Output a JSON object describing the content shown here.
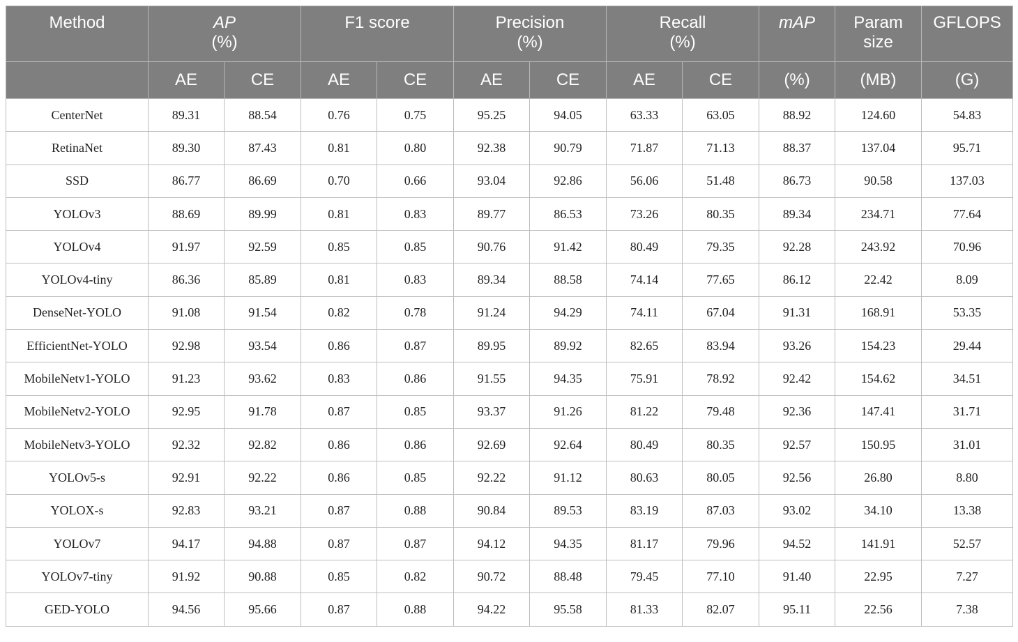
{
  "header": {
    "method": "Method",
    "ap": "AP",
    "ap_unit": "(%)",
    "f1": "F1 score",
    "precision": "Precision",
    "precision_unit": "(%)",
    "recall": "Recall",
    "recall_unit": "(%)",
    "map": "mAP",
    "map_unit": "(%)",
    "param": "Param",
    "param2": "size",
    "param_unit": "(MB)",
    "gflops": "GFLOPS",
    "gflops_unit": "(G)",
    "ae": "AE",
    "ce": "CE"
  },
  "rows": [
    [
      "CenterNet",
      "89.31",
      "88.54",
      "0.76",
      "0.75",
      "95.25",
      "94.05",
      "63.33",
      "63.05",
      "88.92",
      "124.60",
      "54.83"
    ],
    [
      "RetinaNet",
      "89.30",
      "87.43",
      "0.81",
      "0.80",
      "92.38",
      "90.79",
      "71.87",
      "71.13",
      "88.37",
      "137.04",
      "95.71"
    ],
    [
      "SSD",
      "86.77",
      "86.69",
      "0.70",
      "0.66",
      "93.04",
      "92.86",
      "56.06",
      "51.48",
      "86.73",
      "90.58",
      "137.03"
    ],
    [
      "YOLOv3",
      "88.69",
      "89.99",
      "0.81",
      "0.83",
      "89.77",
      "86.53",
      "73.26",
      "80.35",
      "89.34",
      "234.71",
      "77.64"
    ],
    [
      "YOLOv4",
      "91.97",
      "92.59",
      "0.85",
      "0.85",
      "90.76",
      "91.42",
      "80.49",
      "79.35",
      "92.28",
      "243.92",
      "70.96"
    ],
    [
      "YOLOv4-tiny",
      "86.36",
      "85.89",
      "0.81",
      "0.83",
      "89.34",
      "88.58",
      "74.14",
      "77.65",
      "86.12",
      "22.42",
      "8.09"
    ],
    [
      "DenseNet-YOLO",
      "91.08",
      "91.54",
      "0.82",
      "0.78",
      "91.24",
      "94.29",
      "74.11",
      "67.04",
      "91.31",
      "168.91",
      "53.35"
    ],
    [
      "EfficientNet-YOLO",
      "92.98",
      "93.54",
      "0.86",
      "0.87",
      "89.95",
      "89.92",
      "82.65",
      "83.94",
      "93.26",
      "154.23",
      "29.44"
    ],
    [
      "MobileNetv1-YOLO",
      "91.23",
      "93.62",
      "0.83",
      "0.86",
      "91.55",
      "94.35",
      "75.91",
      "78.92",
      "92.42",
      "154.62",
      "34.51"
    ],
    [
      "MobileNetv2-YOLO",
      "92.95",
      "91.78",
      "0.87",
      "0.85",
      "93.37",
      "91.26",
      "81.22",
      "79.48",
      "92.36",
      "147.41",
      "31.71"
    ],
    [
      "MobileNetv3-YOLO",
      "92.32",
      "92.82",
      "0.86",
      "0.86",
      "92.69",
      "92.64",
      "80.49",
      "80.35",
      "92.57",
      "150.95",
      "31.01"
    ],
    [
      "YOLOv5-s",
      "92.91",
      "92.22",
      "0.86",
      "0.85",
      "92.22",
      "91.12",
      "80.63",
      "80.05",
      "92.56",
      "26.80",
      "8.80"
    ],
    [
      "YOLOX-s",
      "92.83",
      "93.21",
      "0.87",
      "0.88",
      "90.84",
      "89.53",
      "83.19",
      "87.03",
      "93.02",
      "34.10",
      "13.38"
    ],
    [
      "YOLOv7",
      "94.17",
      "94.88",
      "0.87",
      "0.87",
      "94.12",
      "94.35",
      "81.17",
      "79.96",
      "94.52",
      "141.91",
      "52.57"
    ],
    [
      "YOLOv7-tiny",
      "91.92",
      "90.88",
      "0.85",
      "0.82",
      "90.72",
      "88.48",
      "79.45",
      "77.10",
      "91.40",
      "22.95",
      "7.27"
    ],
    [
      "GED-YOLO",
      "94.56",
      "95.66",
      "0.87",
      "0.88",
      "94.22",
      "95.58",
      "81.33",
      "82.07",
      "95.11",
      "22.56",
      "7.38"
    ]
  ]
}
